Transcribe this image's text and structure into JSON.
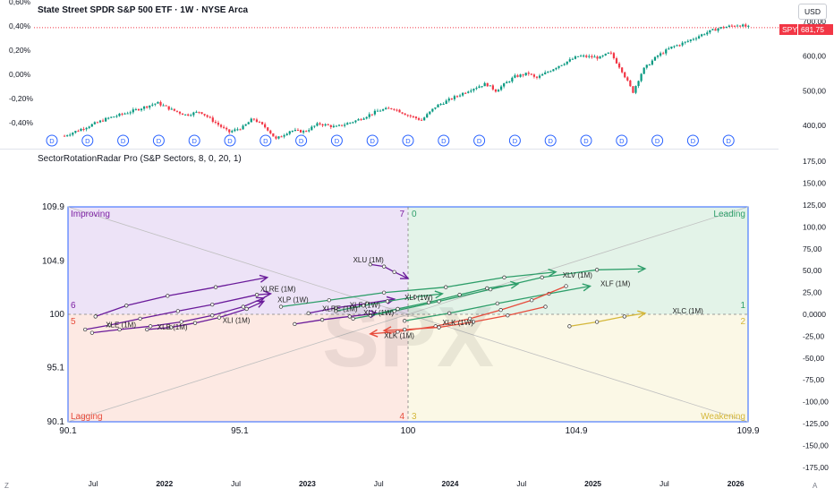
{
  "header": {
    "title": "State Street SPDR S&P 500 ETF · 1W · NYSE Arca",
    "currency_button": "USD",
    "symbol_badge": "SPY",
    "price_badge": "681,75",
    "top_right_label": "700,00"
  },
  "price_pane": {
    "left_pct_ticks": [
      "0,60%",
      "0,40%",
      "0,20%",
      "0,00%",
      "-0,20%",
      "-0,40%"
    ],
    "right_price_ticks": [
      "600,00",
      "500,00",
      "400,00"
    ],
    "right_price_tick_values": [
      600,
      500,
      400
    ],
    "price_range": [
      376,
      706
    ],
    "last_price": 681.75,
    "dividend_marker": "D",
    "dividend_marker_count": 20,
    "up_color": "#089981",
    "down_color": "#f23645",
    "price_path": [
      {
        "t": 2021.3,
        "p": 370
      },
      {
        "t": 2021.45,
        "p": 395
      },
      {
        "t": 2021.6,
        "p": 420
      },
      {
        "t": 2021.75,
        "p": 438
      },
      {
        "t": 2021.95,
        "p": 465
      },
      {
        "t": 2022.05,
        "p": 445
      },
      {
        "t": 2022.15,
        "p": 430
      },
      {
        "t": 2022.25,
        "p": 440
      },
      {
        "t": 2022.35,
        "p": 410
      },
      {
        "t": 2022.45,
        "p": 380
      },
      {
        "t": 2022.55,
        "p": 395
      },
      {
        "t": 2022.62,
        "p": 420
      },
      {
        "t": 2022.72,
        "p": 390
      },
      {
        "t": 2022.78,
        "p": 360
      },
      {
        "t": 2022.88,
        "p": 385
      },
      {
        "t": 2022.98,
        "p": 382
      },
      {
        "t": 2023.08,
        "p": 405
      },
      {
        "t": 2023.2,
        "p": 395
      },
      {
        "t": 2023.35,
        "p": 415
      },
      {
        "t": 2023.5,
        "p": 443
      },
      {
        "t": 2023.6,
        "p": 450
      },
      {
        "t": 2023.7,
        "p": 430
      },
      {
        "t": 2023.8,
        "p": 415
      },
      {
        "t": 2023.9,
        "p": 455
      },
      {
        "t": 2024.0,
        "p": 475
      },
      {
        "t": 2024.15,
        "p": 505
      },
      {
        "t": 2024.25,
        "p": 520
      },
      {
        "t": 2024.32,
        "p": 500
      },
      {
        "t": 2024.45,
        "p": 540
      },
      {
        "t": 2024.55,
        "p": 550
      },
      {
        "t": 2024.6,
        "p": 535
      },
      {
        "t": 2024.75,
        "p": 570
      },
      {
        "t": 2024.9,
        "p": 600
      },
      {
        "t": 2025.05,
        "p": 595
      },
      {
        "t": 2025.12,
        "p": 610
      },
      {
        "t": 2025.2,
        "p": 560
      },
      {
        "t": 2025.28,
        "p": 496
      },
      {
        "t": 2025.35,
        "p": 560
      },
      {
        "t": 2025.45,
        "p": 600
      },
      {
        "t": 2025.55,
        "p": 625
      },
      {
        "t": 2025.65,
        "p": 640
      },
      {
        "t": 2025.78,
        "p": 665
      },
      {
        "t": 2025.88,
        "p": 680
      },
      {
        "t": 2025.95,
        "p": 685
      },
      {
        "t": 2026.02,
        "p": 690
      },
      {
        "t": 2026.1,
        "p": 681.75
      }
    ]
  },
  "indicator": {
    "title": "SectorRotationRadar Pro (S&P Sectors, 8, 0, 20, 1)",
    "watermark": "SPX"
  },
  "time_axis": {
    "labels": [
      {
        "text": "Jul",
        "t": 2021.5
      },
      {
        "text": "2022",
        "t": 2022.0
      },
      {
        "text": "Jul",
        "t": 2022.5
      },
      {
        "text": "2023",
        "t": 2023.0
      },
      {
        "text": "Jul",
        "t": 2023.5
      },
      {
        "text": "2024",
        "t": 2024.0
      },
      {
        "text": "Jul",
        "t": 2024.5
      },
      {
        "text": "2025",
        "t": 2025.0
      },
      {
        "text": "Jul",
        "t": 2025.5
      },
      {
        "text": "2026",
        "t": 2026.0
      }
    ],
    "bold": [
      "2022",
      "2023",
      "2024",
      "2025",
      "2026"
    ],
    "corner_left": "Z",
    "corner_right": "A"
  },
  "chart_data": {
    "type": "scatter",
    "title": "SectorRotationRadar Pro (S&P Sectors, 8, 0, 20, 1)",
    "xlabel": "",
    "ylabel": "",
    "xlim": [
      90.1,
      109.9
    ],
    "ylim": [
      90.1,
      109.9
    ],
    "x_tick_labels": [
      "90.1",
      "95.1",
      "100",
      "104.9",
      "109.9"
    ],
    "y_tick_labels": [
      "109.9",
      "104.9",
      "100",
      "95.1",
      "90.1"
    ],
    "quadrants": [
      {
        "name": "Improving",
        "color": "#7b1fa2",
        "fill": "#ede3f7",
        "x_range": [
          90.1,
          100
        ],
        "y_range": [
          100,
          109.9
        ]
      },
      {
        "name": "Leading",
        "color": "#2e9e6a",
        "fill": "#e3f3e8",
        "x_range": [
          100,
          109.9
        ],
        "y_range": [
          100,
          109.9
        ]
      },
      {
        "name": "Lagging",
        "color": "#e74c3c",
        "fill": "#fde9e3",
        "x_range": [
          90.1,
          100
        ],
        "y_range": [
          90.1,
          100
        ]
      },
      {
        "name": "Weakening",
        "color": "#d4b73a",
        "fill": "#fbf8e6",
        "x_range": [
          100,
          109.9
        ],
        "y_range": [
          90.1,
          100
        ]
      }
    ],
    "zone_numbers": [
      {
        "text": "7",
        "corner": "improving-top-right"
      },
      {
        "text": "0",
        "corner": "leading-top-left"
      },
      {
        "text": "6",
        "corner": "improving-bottom-left"
      },
      {
        "text": "1",
        "corner": "leading-bottom-right"
      },
      {
        "text": "5",
        "corner": "lagging-top-left"
      },
      {
        "text": "2",
        "corner": "weakening-top-right"
      },
      {
        "text": "4",
        "corner": "lagging-bottom-right"
      },
      {
        "text": "3",
        "corner": "weakening-bottom-left"
      }
    ],
    "right_axis_ticks": [
      "175,00",
      "150,00",
      "125,00",
      "100,00",
      "75,00",
      "50,00",
      "25,00",
      "0,0000",
      "-25,00",
      "-50,00",
      "-75,00",
      "-100,00",
      "-125,00",
      "-150,00",
      "-175,00"
    ],
    "right_axis_values": [
      175,
      150,
      125,
      100,
      75,
      50,
      25,
      0,
      -25,
      -50,
      -75,
      -100,
      -125,
      -150,
      -175
    ],
    "series": [
      {
        "name": "XLE (1M)",
        "color": "#6a1b9a",
        "points": [
          [
            90.6,
            98.6
          ],
          [
            91.3,
            99.0
          ],
          [
            92.2,
            99.6
          ],
          [
            93.3,
            100.3
          ],
          [
            94.3,
            100.9
          ],
          [
            95.6,
            101.8
          ],
          [
            96.0,
            101.9
          ]
        ]
      },
      {
        "name": "",
        "color": "#6a1b9a",
        "points": [
          [
            90.9,
            99.8
          ],
          [
            91.8,
            100.8
          ],
          [
            93.0,
            101.7
          ],
          [
            94.4,
            102.5
          ],
          [
            95.9,
            103.4
          ]
        ]
      },
      {
        "name": "XLB (1M)",
        "color": "#6a1b9a",
        "points": [
          [
            90.8,
            98.3
          ],
          [
            91.6,
            98.6
          ],
          [
            92.5,
            98.9
          ],
          [
            93.4,
            99.3
          ],
          [
            94.3,
            99.9
          ],
          [
            95.2,
            100.7
          ],
          [
            95.8,
            101.5
          ]
        ]
      },
      {
        "name": "XLI (1M)",
        "color": "#6a1b9a",
        "points": [
          [
            92.4,
            98.6
          ],
          [
            93.1,
            98.8
          ],
          [
            93.8,
            99.2
          ],
          [
            94.5,
            99.7
          ],
          [
            95.3,
            100.5
          ],
          [
            95.8,
            101.2
          ]
        ]
      },
      {
        "name": "XLRE (1M)",
        "color": "#6a1b9a",
        "points": [
          [
            97.1,
            100.1
          ],
          [
            97.9,
            100.6
          ],
          [
            98.8,
            101.0
          ],
          [
            99.6,
            101.4
          ]
        ]
      },
      {
        "name": "XLU (1M)",
        "color": "#6a1b9a",
        "points": [
          [
            98.9,
            104.6
          ],
          [
            99.3,
            104.4
          ],
          [
            99.6,
            103.9
          ],
          [
            100.0,
            103.3
          ]
        ]
      },
      {
        "name": "XLP (1W)",
        "color": "#6a1b9a",
        "points": [
          [
            96.7,
            99.1
          ],
          [
            97.5,
            99.5
          ],
          [
            98.3,
            99.8
          ],
          [
            99.1,
            100.1
          ]
        ]
      },
      {
        "name": "XLF (1W)",
        "color": "#2e9e6a",
        "points": [
          [
            97.9,
            100.3
          ],
          [
            98.7,
            100.8
          ],
          [
            99.4,
            101.2
          ],
          [
            100.2,
            101.6
          ],
          [
            101.0,
            101.9
          ]
        ]
      },
      {
        "name": "XLP (1M)",
        "color": "#2e9e6a",
        "points": [
          [
            96.3,
            100.7
          ],
          [
            97.7,
            101.3
          ],
          [
            99.3,
            102.0
          ],
          [
            101.1,
            102.5
          ],
          [
            102.8,
            103.4
          ],
          [
            104.3,
            103.9
          ]
        ]
      },
      {
        "name": "XLV (1M)",
        "color": "#2e9e6a",
        "points": [
          [
            98.4,
            99.6
          ],
          [
            99.6,
            100.3
          ],
          [
            100.9,
            101.2
          ],
          [
            102.4,
            102.3
          ],
          [
            103.9,
            103.4
          ],
          [
            105.5,
            104.1
          ],
          [
            106.9,
            104.2
          ]
        ]
      },
      {
        "name": "XLF (1M)",
        "color": "#2e9e6a",
        "points": [
          [
            99.9,
            99.4
          ],
          [
            101.2,
            100.1
          ],
          [
            102.6,
            101.0
          ],
          [
            104.1,
            101.9
          ],
          [
            105.3,
            102.6
          ]
        ]
      },
      {
        "name": "XLK (1M)",
        "color": "#e74c3c",
        "points": [
          [
            104.6,
            102.6
          ],
          [
            103.6,
            101.3
          ],
          [
            102.7,
            100.4
          ],
          [
            101.8,
            99.6
          ],
          [
            100.8,
            98.9
          ],
          [
            99.7,
            98.4
          ],
          [
            98.9,
            98.2
          ]
        ]
      },
      {
        "name": "XLK (1W)",
        "color": "#e74c3c",
        "points": [
          [
            104.0,
            100.7
          ],
          [
            102.9,
            99.9
          ],
          [
            101.9,
            99.3
          ],
          [
            100.9,
            98.8
          ],
          [
            99.9,
            98.6
          ],
          [
            99.3,
            98.5
          ]
        ]
      },
      {
        "name": "XLC (1M)",
        "color": "#d4b73a",
        "points": [
          [
            104.7,
            98.9
          ],
          [
            105.5,
            99.3
          ],
          [
            106.3,
            99.8
          ],
          [
            106.9,
            100.1
          ]
        ]
      },
      {
        "name": "XLY (1M)",
        "color": "#2e9e6a",
        "points": [
          [
            98.9,
            99.9
          ],
          [
            99.7,
            100.5
          ],
          [
            100.6,
            101.1
          ],
          [
            101.5,
            101.8
          ],
          [
            102.3,
            102.4
          ],
          [
            103.2,
            102.8
          ]
        ]
      }
    ],
    "visible_labels": [
      {
        "text": "XLE (1M)",
        "x": 91.2,
        "y": 98.8
      },
      {
        "text": "XLB (1M)",
        "x": 92.7,
        "y": 98.6
      },
      {
        "text": "XLI (1M)",
        "x": 94.6,
        "y": 99.2
      },
      {
        "text": "XLRE (1M)",
        "x": 97.5,
        "y": 100.3
      },
      {
        "text": "XLRE (1M)",
        "x": 95.7,
        "y": 102.1
      },
      {
        "text": "XLU (1M)",
        "x": 98.4,
        "y": 104.8
      },
      {
        "text": "XLP (1W)",
        "x": 96.2,
        "y": 101.1
      },
      {
        "text": "XLF (1W)",
        "x": 98.3,
        "y": 100.6
      },
      {
        "text": "XLI (1W)",
        "x": 99.9,
        "y": 101.3
      },
      {
        "text": "XLV (1W)",
        "x": 98.7,
        "y": 99.9
      },
      {
        "text": "XLV (1M)",
        "x": 104.5,
        "y": 103.4
      },
      {
        "text": "XLF (1M)",
        "x": 105.6,
        "y": 102.6
      },
      {
        "text": "XLC (1M)",
        "x": 107.7,
        "y": 100.1
      },
      {
        "text": "XLK (1M)",
        "x": 99.3,
        "y": 97.8
      },
      {
        "text": "XLK (1W)",
        "x": 101.0,
        "y": 99.0
      }
    ]
  }
}
